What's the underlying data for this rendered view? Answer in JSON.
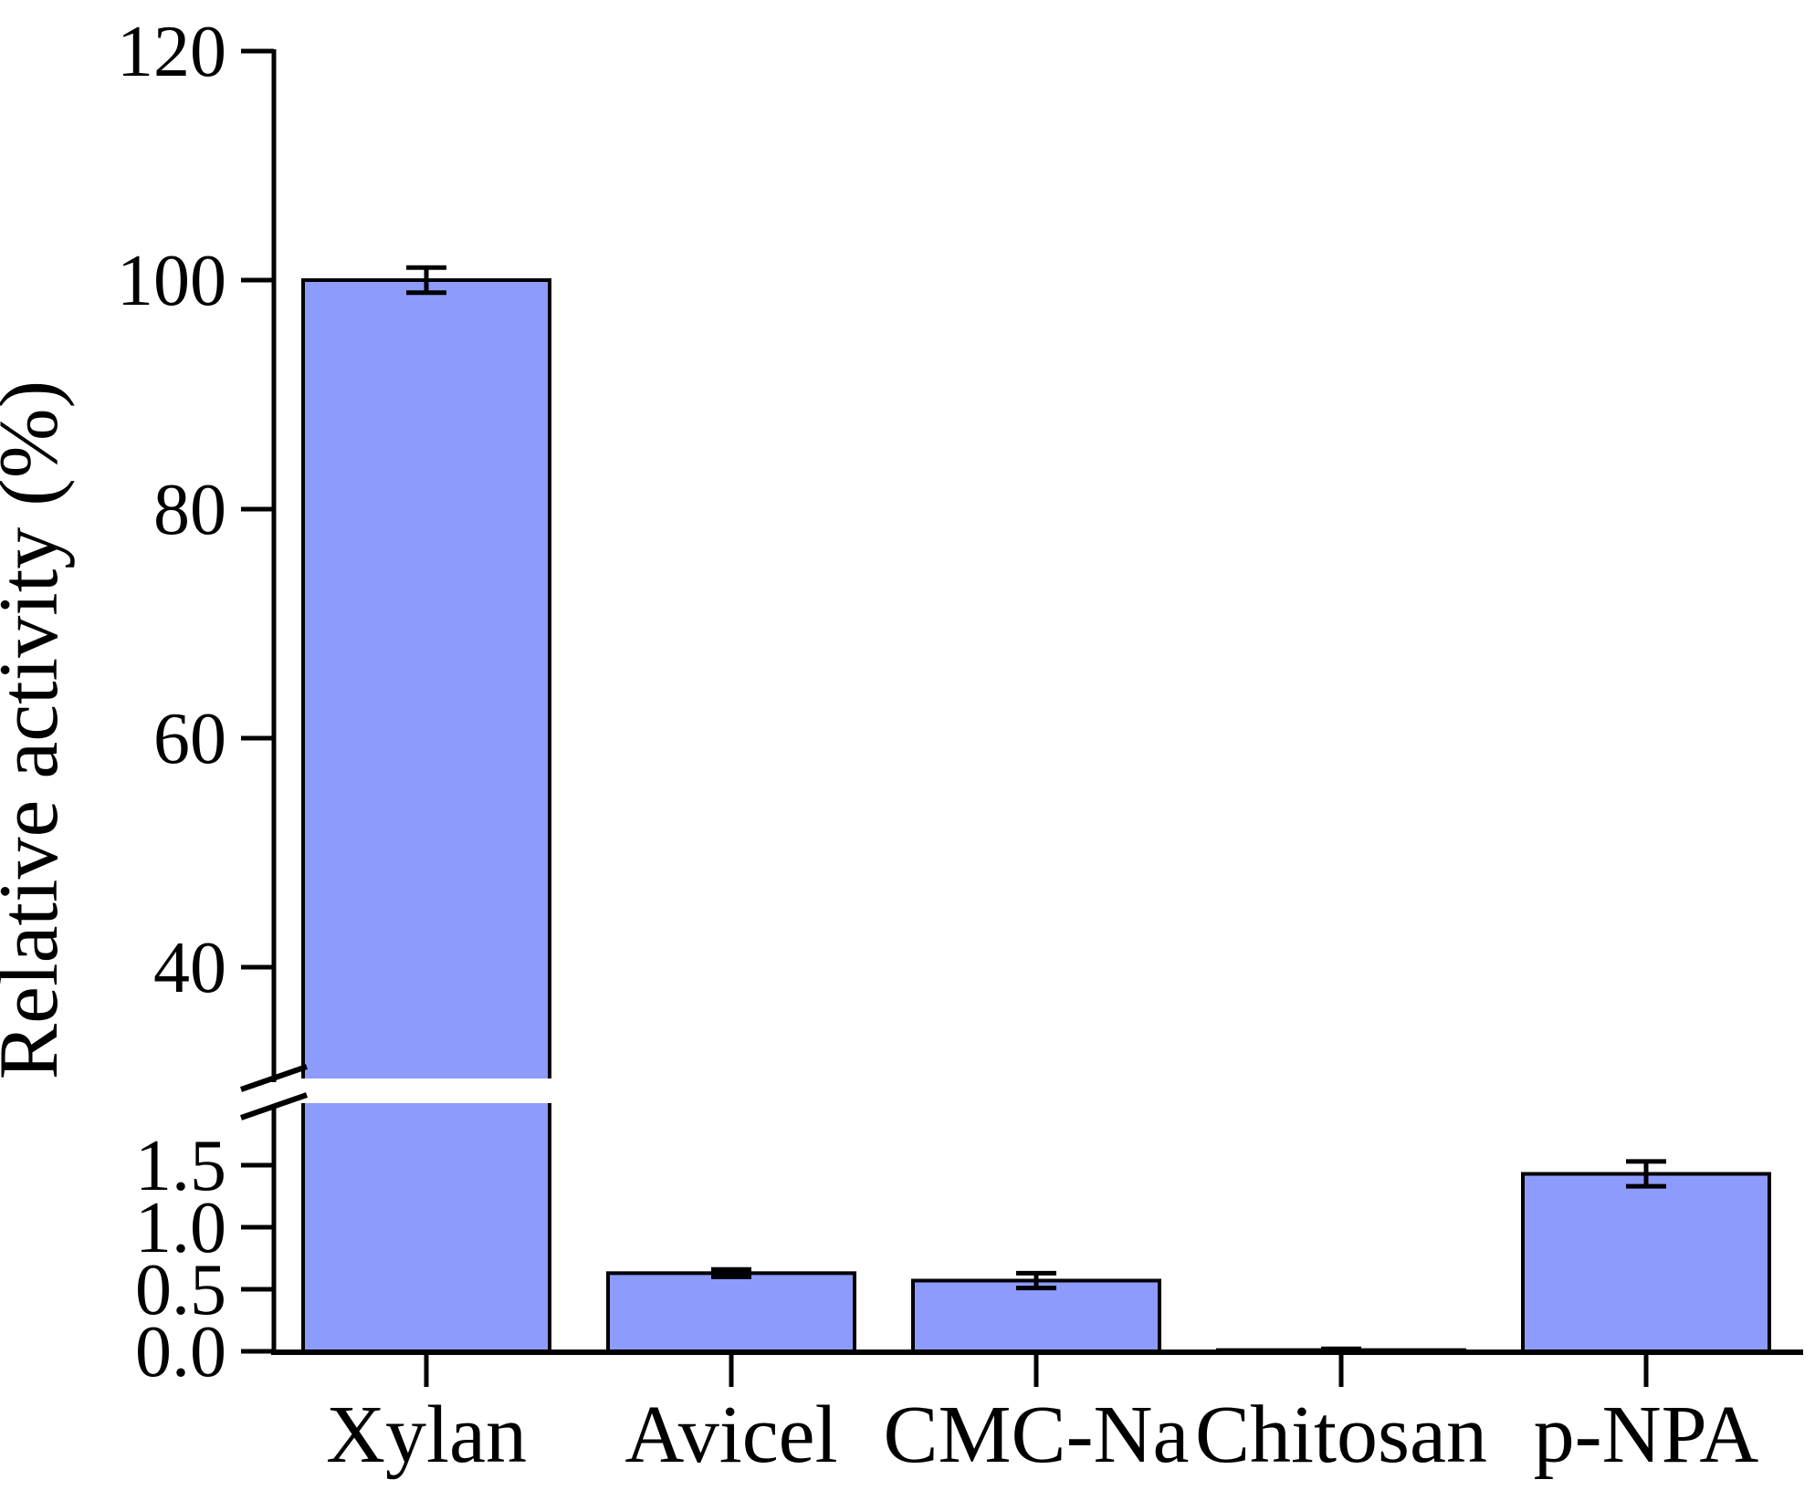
{
  "figure": {
    "background_color": "#ffffff",
    "kind": "broken-axis bar chart"
  },
  "chart_data": {
    "type": "bar",
    "title": "",
    "xlabel": "",
    "ylabel": "Relative activity (%)",
    "categories": [
      "Xylan",
      "Avicel",
      "CMC-Na",
      "Chitosan",
      "p-NPA"
    ],
    "values": [
      100,
      0.63,
      0.57,
      0.01,
      1.43
    ],
    "errors": [
      1.1,
      0.03,
      0.06,
      0.01,
      0.1
    ],
    "bar_color": "#8d9bfc",
    "bar_edge_color": "#000000",
    "error_bar_color": "#000000",
    "axis_color": "#000000",
    "grid": false,
    "legend": false,
    "axis_break": {
      "style": "double-slash with white gap band",
      "upper_section": {
        "range": [
          30,
          120
        ],
        "ticks": [
          40,
          60,
          80,
          100,
          120
        ],
        "tick_labels": [
          "40",
          "60",
          "80",
          "100",
          "120"
        ]
      },
      "lower_section": {
        "range": [
          0.0,
          2.0
        ],
        "ticks": [
          0.0,
          0.5,
          1.0,
          1.5
        ],
        "tick_labels": [
          "0.0",
          "0.5",
          "1.0",
          "1.5"
        ]
      }
    }
  }
}
